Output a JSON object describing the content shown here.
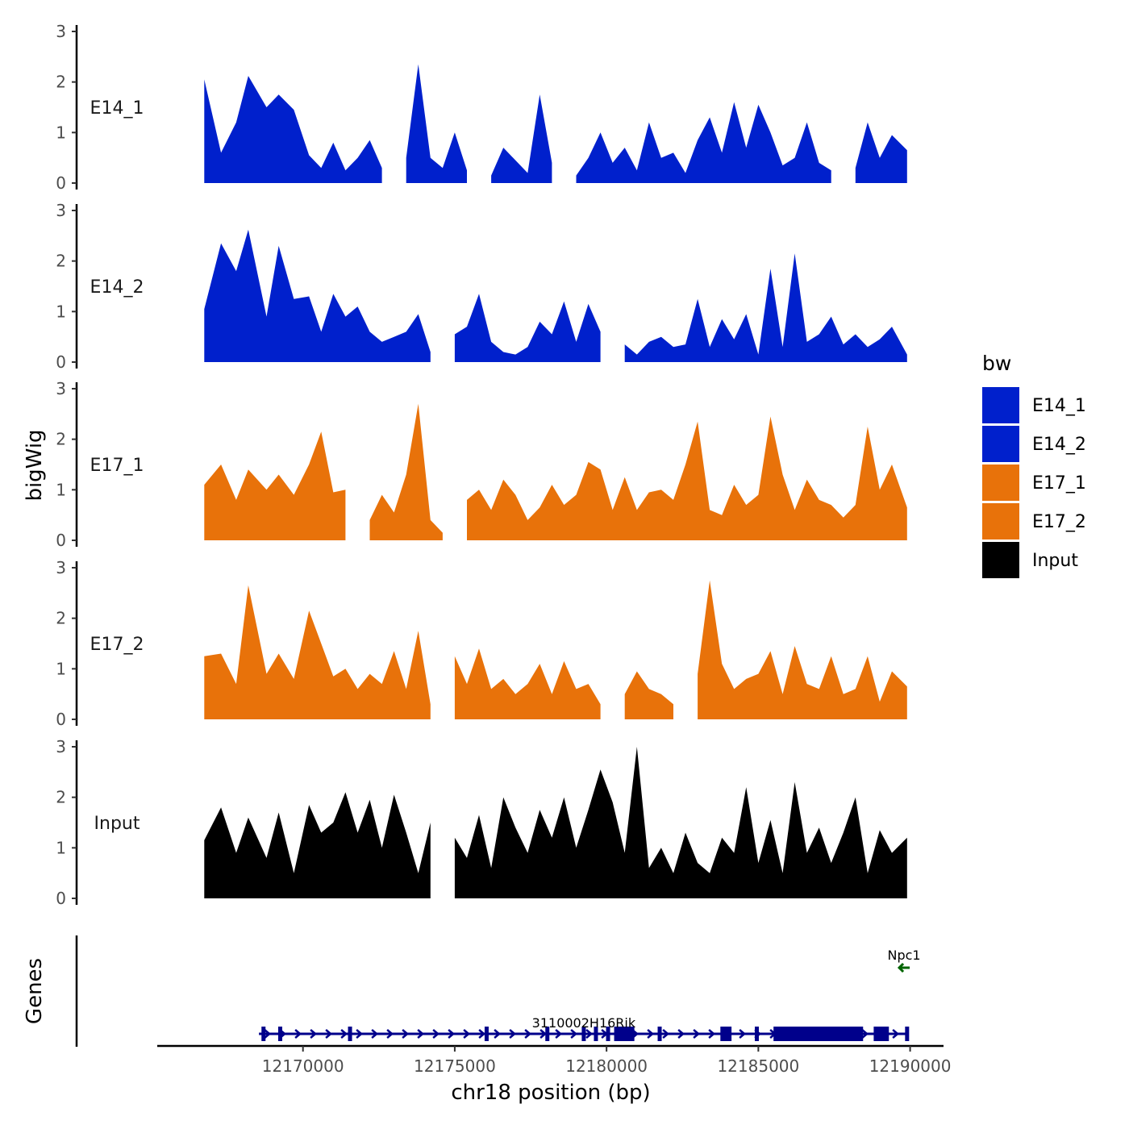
{
  "colors": {
    "E14": "#0020CC",
    "E17": "#E8720A",
    "Input": "#000000",
    "gene_plus": "#00008B",
    "gene_minus": "#006400",
    "axis": "#000000"
  },
  "chart_data": {
    "type": "area",
    "xlabel": "chr18 position (bp)",
    "ylabel": "bigWig",
    "genes_label": "Genes",
    "xlim": [
      12165200,
      12191100
    ],
    "ylim": [
      0,
      3
    ],
    "y_ticks": [
      "0",
      "1",
      "2",
      "3"
    ],
    "x_ticks": [
      {
        "value": 12170000,
        "label": "12170000"
      },
      {
        "value": 12175000,
        "label": "12175000"
      },
      {
        "value": 12180000,
        "label": "12180000"
      },
      {
        "value": 12185000,
        "label": "12185000"
      },
      {
        "value": 12190000,
        "label": "12190000"
      }
    ],
    "legend": {
      "title": "bw",
      "position": "right",
      "entries": [
        {
          "label": "E14_1",
          "color": "#0020CC"
        },
        {
          "label": "E14_2",
          "color": "#0020CC"
        },
        {
          "label": "E17_1",
          "color": "#E8720A"
        },
        {
          "label": "E17_2",
          "color": "#E8720A"
        },
        {
          "label": "Input",
          "color": "#000000"
        }
      ]
    },
    "series": [
      {
        "name": "E14_1",
        "color": "#0020CC",
        "x": [
          12166750,
          12167300,
          12167800,
          12168200,
          12168800,
          12169200,
          12169700,
          12170200,
          12170600,
          12171000,
          12171400,
          12171800,
          12172200,
          12172600,
          12173000,
          12173400,
          12173800,
          12174200,
          12174600,
          12175000,
          12175400,
          12175800,
          12176200,
          12176600,
          12177000,
          12177400,
          12177800,
          12178200,
          12178600,
          12179000,
          12179400,
          12179800,
          12180200,
          12180600,
          12181000,
          12181400,
          12181800,
          12182200,
          12182600,
          12183000,
          12183400,
          12183800,
          12184200,
          12184600,
          12185000,
          12185400,
          12185800,
          12186200,
          12186600,
          12187000,
          12187400,
          12187800,
          12188200,
          12188600,
          12189000,
          12189400,
          12189900
        ],
        "y": [
          2.05,
          0.6,
          1.2,
          2.12,
          1.5,
          1.75,
          1.45,
          0.55,
          0.3,
          0.8,
          0.25,
          0.5,
          0.85,
          0.3,
          null,
          0.5,
          2.35,
          0.5,
          0.3,
          1.0,
          0.25,
          null,
          0.15,
          0.7,
          0.45,
          0.2,
          1.75,
          0.4,
          null,
          0.15,
          0.5,
          1.0,
          0.4,
          0.7,
          0.25,
          1.2,
          0.5,
          0.6,
          0.2,
          0.85,
          1.3,
          0.6,
          1.6,
          0.7,
          1.55,
          1.0,
          0.35,
          0.5,
          1.2,
          0.4,
          0.25,
          null,
          0.3,
          1.2,
          0.5,
          0.95,
          0.65
        ]
      },
      {
        "name": "E14_2",
        "color": "#0020CC",
        "x": [
          12166750,
          12167300,
          12167800,
          12168200,
          12168800,
          12169200,
          12169700,
          12170200,
          12170600,
          12171000,
          12171400,
          12171800,
          12172200,
          12172600,
          12173000,
          12173400,
          12173800,
          12174200,
          12174600,
          12175000,
          12175400,
          12175800,
          12176200,
          12176600,
          12177000,
          12177400,
          12177800,
          12178200,
          12178600,
          12179000,
          12179400,
          12179800,
          12180200,
          12180600,
          12181000,
          12181400,
          12181800,
          12182200,
          12182600,
          12183000,
          12183400,
          12183800,
          12184200,
          12184600,
          12185000,
          12185400,
          12185800,
          12186200,
          12186600,
          12187000,
          12187400,
          12187800,
          12188200,
          12188600,
          12189000,
          12189400,
          12189900
        ],
        "y": [
          1.05,
          2.35,
          1.8,
          2.62,
          0.9,
          2.3,
          1.25,
          1.3,
          0.6,
          1.35,
          0.9,
          1.1,
          0.6,
          0.4,
          0.5,
          0.6,
          0.95,
          0.2,
          null,
          0.55,
          0.7,
          1.35,
          0.4,
          0.2,
          0.15,
          0.3,
          0.8,
          0.55,
          1.2,
          0.4,
          1.15,
          0.6,
          null,
          0.35,
          0.15,
          0.4,
          0.5,
          0.3,
          0.35,
          1.25,
          0.3,
          0.85,
          0.45,
          0.95,
          0.15,
          1.85,
          0.3,
          2.15,
          0.4,
          0.55,
          0.9,
          0.35,
          0.55,
          0.3,
          0.45,
          0.7,
          0.15
        ]
      },
      {
        "name": "E17_1",
        "color": "#E8720A",
        "x": [
          12166750,
          12167300,
          12167800,
          12168200,
          12168800,
          12169200,
          12169700,
          12170200,
          12170600,
          12171000,
          12171400,
          12171800,
          12172200,
          12172600,
          12173000,
          12173400,
          12173800,
          12174200,
          12174600,
          12175000,
          12175400,
          12175800,
          12176200,
          12176600,
          12177000,
          12177400,
          12177800,
          12178200,
          12178600,
          12179000,
          12179400,
          12179800,
          12180200,
          12180600,
          12181000,
          12181400,
          12181800,
          12182200,
          12182600,
          12183000,
          12183400,
          12183800,
          12184200,
          12184600,
          12185000,
          12185400,
          12185800,
          12186200,
          12186600,
          12187000,
          12187400,
          12187800,
          12188200,
          12188600,
          12189000,
          12189400,
          12189900
        ],
        "y": [
          1.1,
          1.5,
          0.8,
          1.4,
          1.0,
          1.3,
          0.9,
          1.5,
          2.15,
          0.95,
          1.0,
          null,
          0.4,
          0.9,
          0.55,
          1.3,
          2.7,
          0.4,
          0.15,
          null,
          0.8,
          1.0,
          0.6,
          1.2,
          0.9,
          0.4,
          0.65,
          1.1,
          0.7,
          0.9,
          1.55,
          1.4,
          0.6,
          1.25,
          0.6,
          0.95,
          1.0,
          0.8,
          1.5,
          2.35,
          0.6,
          0.5,
          1.1,
          0.7,
          0.9,
          2.45,
          1.3,
          0.6,
          1.2,
          0.8,
          0.7,
          0.45,
          0.7,
          2.25,
          1.0,
          1.5,
          0.65
        ]
      },
      {
        "name": "E17_2",
        "color": "#E8720A",
        "x": [
          12166750,
          12167300,
          12167800,
          12168200,
          12168800,
          12169200,
          12169700,
          12170200,
          12170600,
          12171000,
          12171400,
          12171800,
          12172200,
          12172600,
          12173000,
          12173400,
          12173800,
          12174200,
          12174600,
          12175000,
          12175400,
          12175800,
          12176200,
          12176600,
          12177000,
          12177400,
          12177800,
          12178200,
          12178600,
          12179000,
          12179400,
          12179800,
          12180200,
          12180600,
          12181000,
          12181400,
          12181800,
          12182200,
          12182600,
          12183000,
          12183400,
          12183800,
          12184200,
          12184600,
          12185000,
          12185400,
          12185800,
          12186200,
          12186600,
          12187000,
          12187400,
          12187800,
          12188200,
          12188600,
          12189000,
          12189400,
          12189900
        ],
        "y": [
          1.25,
          1.3,
          0.7,
          2.65,
          0.9,
          1.3,
          0.8,
          2.15,
          1.5,
          0.85,
          1.0,
          0.6,
          0.9,
          0.7,
          1.35,
          0.6,
          1.75,
          0.3,
          null,
          1.25,
          0.7,
          1.4,
          0.6,
          0.8,
          0.5,
          0.7,
          1.1,
          0.5,
          1.15,
          0.6,
          0.7,
          0.3,
          null,
          0.5,
          0.95,
          0.6,
          0.5,
          0.3,
          null,
          0.9,
          2.75,
          1.1,
          0.6,
          0.8,
          0.9,
          1.35,
          0.5,
          1.45,
          0.7,
          0.6,
          1.25,
          0.5,
          0.6,
          1.25,
          0.35,
          0.95,
          0.65
        ]
      },
      {
        "name": "Input",
        "color": "#000000",
        "x": [
          12166750,
          12167300,
          12167800,
          12168200,
          12168800,
          12169200,
          12169700,
          12170200,
          12170600,
          12171000,
          12171400,
          12171800,
          12172200,
          12172600,
          12173000,
          12173400,
          12173800,
          12174200,
          12174600,
          12175000,
          12175400,
          12175800,
          12176200,
          12176600,
          12177000,
          12177400,
          12177800,
          12178200,
          12178600,
          12179000,
          12179400,
          12179800,
          12180200,
          12180600,
          12181000,
          12181400,
          12181800,
          12182200,
          12182600,
          12183000,
          12183400,
          12183800,
          12184200,
          12184600,
          12185000,
          12185400,
          12185800,
          12186200,
          12186600,
          12187000,
          12187400,
          12187800,
          12188200,
          12188600,
          12189000,
          12189400,
          12189900
        ],
        "y": [
          1.15,
          1.8,
          0.9,
          1.6,
          0.8,
          1.7,
          0.5,
          1.85,
          1.3,
          1.5,
          2.1,
          1.3,
          1.95,
          1.0,
          2.05,
          1.3,
          0.5,
          1.5,
          null,
          1.2,
          0.8,
          1.65,
          0.6,
          2.0,
          1.4,
          0.9,
          1.75,
          1.2,
          2.0,
          1.0,
          1.75,
          2.55,
          1.9,
          0.9,
          3.0,
          0.6,
          1.0,
          0.5,
          1.3,
          0.7,
          0.5,
          1.2,
          0.9,
          2.2,
          0.7,
          1.55,
          0.5,
          2.3,
          0.9,
          1.4,
          0.7,
          1.3,
          2.0,
          0.5,
          1.35,
          0.9,
          1.2
        ]
      }
    ],
    "genes": [
      {
        "name": "3110002H16Rik",
        "strand": "+",
        "start": 12168550,
        "end": 12189950,
        "color": "#00008B",
        "exons": [
          12168700,
          12169250,
          12171550,
          12176050,
          12178050,
          12179250,
          12179650,
          12180050,
          12180850,
          12181750,
          12184050,
          12184950,
          12189900
        ],
        "blocks": [
          [
            12180250,
            12180800
          ],
          [
            12183750,
            12184050
          ],
          [
            12185500,
            12188450
          ],
          [
            12188800,
            12189300
          ]
        ]
      },
      {
        "name": "Npc1",
        "strand": "-",
        "start": 12189650,
        "end": 12189950,
        "color": "#006400",
        "exons": [],
        "blocks": []
      }
    ]
  }
}
